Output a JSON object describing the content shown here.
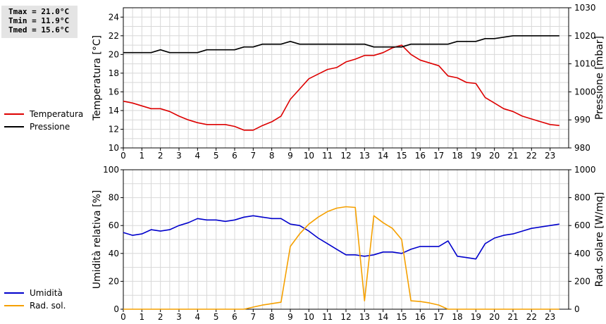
{
  "stats": {
    "tmax": "Tmax = 21.0°C",
    "tmin": "Tmin = 11.9°C",
    "tmed": "Tmed = 15.6°C"
  },
  "colors": {
    "temperature": "#dd0000",
    "pressure": "#000000",
    "humidity": "#0000cc",
    "radiation": "#f5a000",
    "grid": "#d8d8d8"
  },
  "chart_data": [
    {
      "type": "line",
      "x_ticks": [
        "0",
        "1",
        "2",
        "3",
        "4",
        "5",
        "6",
        "7",
        "8",
        "9",
        "10",
        "11",
        "12",
        "13",
        "14",
        "15",
        "16",
        "17",
        "18",
        "19",
        "20",
        "21",
        "22",
        "23"
      ],
      "xlim": [
        0,
        24
      ],
      "grid": true,
      "legend_placement": "left",
      "left_axis": {
        "label": "Temperatura [°C]",
        "ylim": [
          10,
          25
        ],
        "ticks": [
          "10",
          "12",
          "14",
          "16",
          "18",
          "20",
          "22",
          "24"
        ]
      },
      "right_axis": {
        "label": "Pressione [mbar]",
        "ylim": [
          980,
          1030
        ],
        "ticks": [
          "980",
          "990",
          "1000",
          "1010",
          "1020",
          "1030"
        ]
      },
      "series": [
        {
          "name": "Temperatura",
          "axis": "left",
          "color": "#dd0000",
          "x": [
            0,
            0.5,
            1,
            1.5,
            2,
            2.5,
            3,
            3.5,
            4,
            4.5,
            5,
            5.5,
            6,
            6.5,
            7,
            7.5,
            8,
            8.5,
            9,
            9.5,
            10,
            10.5,
            11,
            11.5,
            12,
            12.5,
            13,
            13.5,
            14,
            14.5,
            15,
            15.5,
            16,
            16.5,
            17,
            17.5,
            18,
            18.5,
            19,
            19.5,
            20,
            20.5,
            21,
            21.5,
            22,
            22.5,
            23,
            23.5
          ],
          "values": [
            15.0,
            14.8,
            14.5,
            14.2,
            14.2,
            13.9,
            13.4,
            13.0,
            12.7,
            12.5,
            12.5,
            12.5,
            12.3,
            11.9,
            11.9,
            12.4,
            12.8,
            13.4,
            15.2,
            16.3,
            17.4,
            17.9,
            18.4,
            18.6,
            19.2,
            19.5,
            19.9,
            19.9,
            20.2,
            20.7,
            21.0,
            20.0,
            19.4,
            19.1,
            18.8,
            17.7,
            17.5,
            17.0,
            16.9,
            15.4,
            14.8,
            14.2,
            13.9,
            13.4,
            13.1,
            12.8,
            12.5,
            12.4
          ]
        },
        {
          "name": "Pressione",
          "axis": "right",
          "color": "#000000",
          "x": [
            0,
            1,
            1.5,
            2,
            2.5,
            3,
            4,
            4.5,
            5,
            6,
            6.5,
            7,
            7.5,
            8,
            8.5,
            9,
            9.5,
            10,
            11,
            12,
            13,
            13.5,
            14,
            15,
            15.5,
            16,
            17,
            17.5,
            18,
            19,
            19.5,
            20,
            21,
            22,
            23,
            23.5
          ],
          "values": [
            1014,
            1014,
            1014,
            1015,
            1014,
            1014,
            1014,
            1015,
            1015,
            1015,
            1016,
            1016,
            1017,
            1017,
            1017,
            1018,
            1017,
            1017,
            1017,
            1017,
            1017,
            1016,
            1016,
            1016,
            1017,
            1017,
            1017,
            1017,
            1018,
            1018,
            1019,
            1019,
            1020,
            1020,
            1020,
            1020
          ]
        }
      ]
    },
    {
      "type": "line",
      "x_ticks": [
        "0",
        "1",
        "2",
        "3",
        "4",
        "5",
        "6",
        "7",
        "8",
        "9",
        "10",
        "11",
        "12",
        "13",
        "14",
        "15",
        "16",
        "17",
        "18",
        "19",
        "20",
        "21",
        "22",
        "23"
      ],
      "xlim": [
        0,
        24
      ],
      "grid": true,
      "legend_placement": "left",
      "left_axis": {
        "label": "Umidità relativa [%]",
        "ylim": [
          0,
          100
        ],
        "ticks": [
          "0",
          "20",
          "40",
          "60",
          "80",
          "100"
        ]
      },
      "right_axis": {
        "label": "Rad. solare [W/mq]",
        "ylim": [
          0,
          1000
        ],
        "ticks": [
          "0",
          "200",
          "400",
          "600",
          "800",
          "1000"
        ]
      },
      "series": [
        {
          "name": "Umidità",
          "axis": "left",
          "color": "#0000cc",
          "x": [
            0,
            0.5,
            1,
            1.5,
            2,
            2.5,
            3,
            3.5,
            4,
            4.5,
            5,
            5.5,
            6,
            6.5,
            7,
            7.5,
            8,
            8.5,
            9,
            9.5,
            10,
            10.5,
            11,
            11.5,
            12,
            12.5,
            13,
            13.5,
            14,
            14.5,
            15,
            15.5,
            16,
            16.5,
            17,
            17.5,
            18,
            18.5,
            19,
            19.5,
            20,
            20.5,
            21,
            21.5,
            22,
            22.5,
            23,
            23.5
          ],
          "values": [
            55,
            53,
            54,
            57,
            56,
            57,
            60,
            62,
            65,
            64,
            64,
            63,
            64,
            66,
            67,
            66,
            65,
            65,
            61,
            60,
            56,
            51,
            47,
            43,
            39,
            39,
            38,
            39,
            41,
            41,
            40,
            43,
            45,
            45,
            45,
            49,
            38,
            37,
            36,
            47,
            51,
            53,
            54,
            56,
            58,
            59,
            60,
            61
          ]
        },
        {
          "name": "Rad. sol.",
          "axis": "right",
          "color": "#f5a000",
          "x": [
            0,
            1,
            2,
            3,
            4,
            5,
            6,
            6.5,
            7,
            7.5,
            8,
            8.5,
            9,
            9.5,
            10,
            10.5,
            11,
            11.5,
            12,
            12.5,
            13,
            13.5,
            14,
            14.5,
            15,
            15.5,
            16,
            16.5,
            17,
            17.5,
            18,
            19,
            20,
            21,
            22,
            23,
            23.5
          ],
          "values": [
            0,
            0,
            0,
            0,
            0,
            0,
            0,
            0,
            15,
            30,
            40,
            50,
            450,
            540,
            610,
            660,
            700,
            725,
            735,
            730,
            60,
            670,
            620,
            580,
            500,
            60,
            55,
            45,
            30,
            0,
            0,
            0,
            0,
            0,
            0,
            0,
            0
          ]
        }
      ]
    }
  ]
}
